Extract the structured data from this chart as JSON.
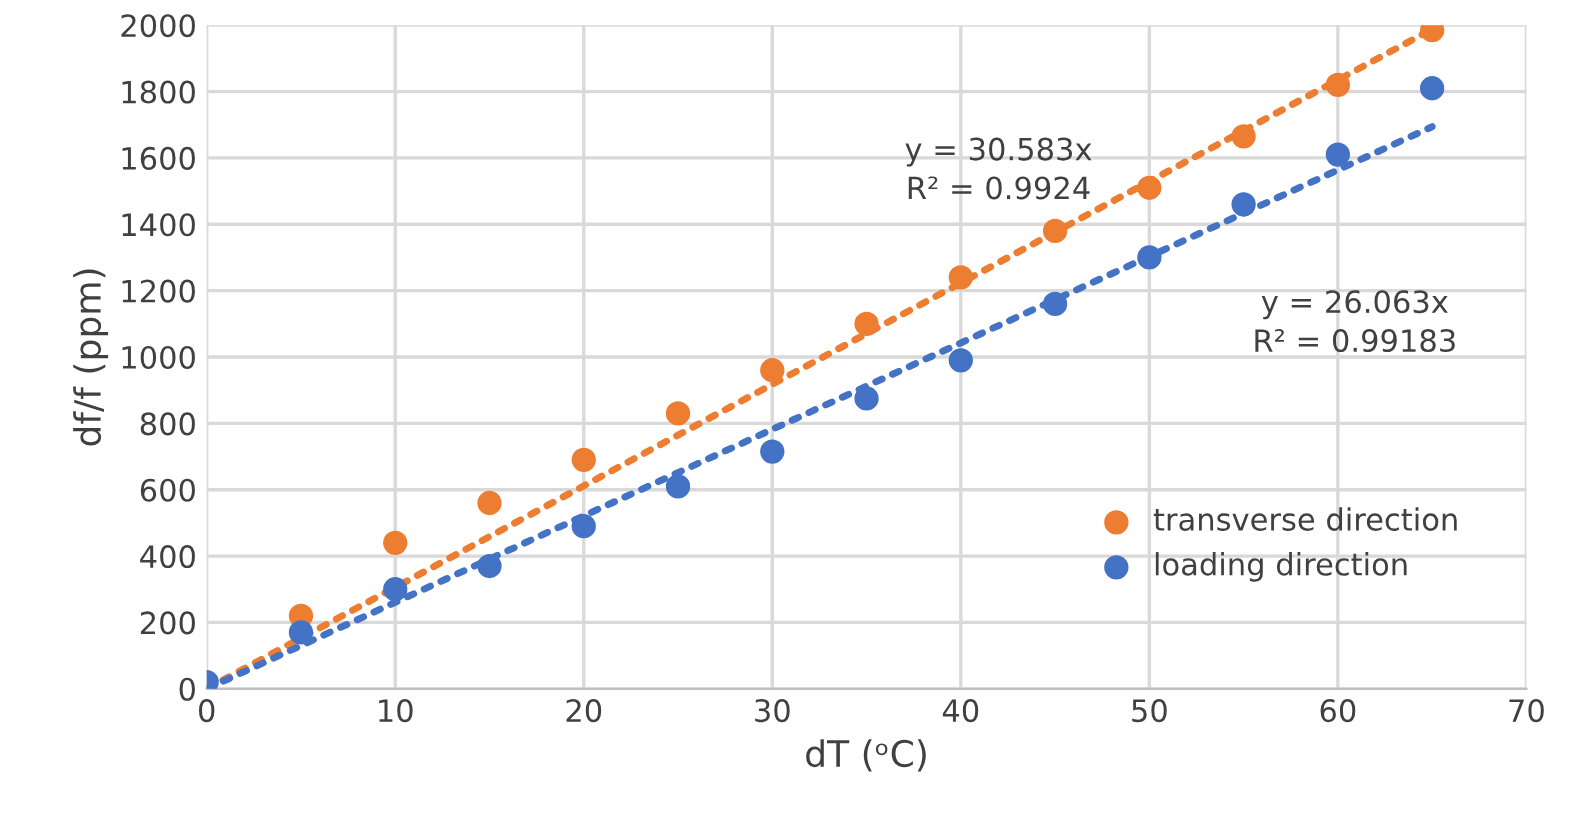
{
  "chart_data": {
    "type": "scatter",
    "xlabel": "dT (ᵒC)",
    "ylabel": "df/f (ppm)",
    "xlim": [
      0,
      70
    ],
    "xticks": [
      0,
      10,
      20,
      30,
      40,
      50,
      60,
      70
    ],
    "ylim": [
      0,
      2000
    ],
    "yticks": [
      0,
      200,
      400,
      600,
      800,
      1000,
      1200,
      1400,
      1600,
      1800,
      2000
    ],
    "grid": true,
    "legend": "bottom right",
    "marker": "circle",
    "series": [
      {
        "name": "transverse direction",
        "color": "#ed7d31",
        "x": [
          5,
          10,
          15,
          20,
          25,
          30,
          35,
          40,
          45,
          50,
          55,
          60,
          65
        ],
        "values": [
          220,
          440,
          560,
          690,
          830,
          960,
          1100,
          1240,
          1380,
          1510,
          1665,
          1820,
          1985
        ]
      },
      {
        "name": "loading direction",
        "color": "#4472c4",
        "x": [
          0,
          5,
          10,
          15,
          20,
          25,
          30,
          35,
          40,
          45,
          50,
          55,
          60,
          65
        ],
        "values": [
          20,
          170,
          300,
          370,
          490,
          610,
          715,
          875,
          990,
          1160,
          1300,
          1460,
          1610,
          1810
        ]
      },
      {
        "type": "line",
        "color": "#ed7d31",
        "line_style": "dotted",
        "marker": "none",
        "x": [
          0,
          65
        ],
        "values": [
          0,
          1988
        ]
      },
      {
        "type": "line",
        "color": "#4472c4",
        "line_style": "dotted",
        "marker": "none",
        "x": [
          0,
          65
        ],
        "values": [
          0,
          1694
        ]
      }
    ],
    "annotations": [
      "y = 30.583x\nR² = 0.9924",
      "y = 26.063x\nR² = 0.99183"
    ]
  }
}
